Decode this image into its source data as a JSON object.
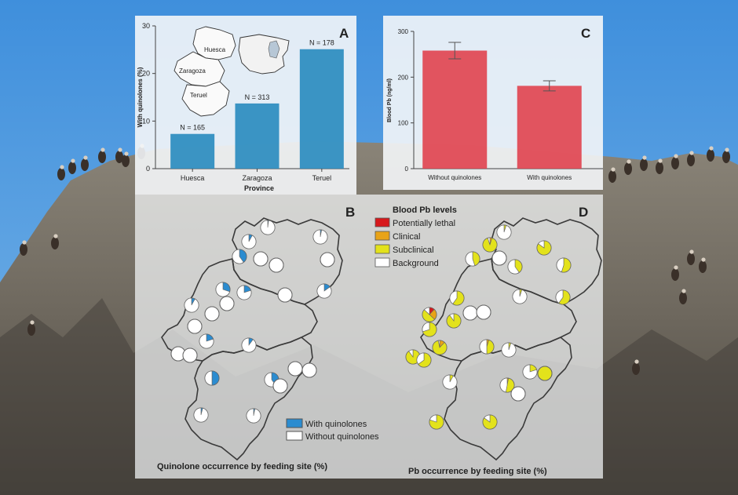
{
  "chart_data": [
    {
      "panel": "A",
      "type": "bar",
      "categories": [
        "Huesca",
        "Zaragoza",
        "Teruel"
      ],
      "values": [
        7.3,
        13.7,
        25.1
      ],
      "bar_labels": [
        "N = 165",
        "N = 313",
        "N = 178"
      ],
      "xlabel": "Province",
      "ylabel": "With quinolones (%)",
      "ylim": [
        0,
        30
      ],
      "yticks": [
        0,
        10,
        20,
        30
      ],
      "inset_labels": [
        "Huesca",
        "Zaragoza",
        "Teruel"
      ],
      "color": "#2b8cbf",
      "grid": false
    },
    {
      "panel": "C",
      "type": "bar",
      "categories": [
        "Without quinolones",
        "With quinolones"
      ],
      "values": [
        258,
        181
      ],
      "errors": [
        18,
        11
      ],
      "ylabel": "Blood Pb (ng/ml)",
      "ylim": [
        0,
        300
      ],
      "yticks": [
        0,
        100,
        200,
        300
      ],
      "color": "#e0434f",
      "grid": false
    },
    {
      "panel": "B",
      "type": "pie",
      "title": "Quinolone occurrence by feeding site (%)",
      "legend": [
        "With quinolones",
        "Without quinolones"
      ],
      "colors": [
        "#2b8cd0",
        "#ffffff"
      ]
    },
    {
      "panel": "D",
      "type": "pie",
      "title": "Pb occurrence by feeding site (%)",
      "legend_title": "Blood Pb levels",
      "legend": [
        "Potentially lethal",
        "Clinical",
        "Subclinical",
        "Background"
      ],
      "colors": [
        "#d7191c",
        "#e8a317",
        "#e3e21b",
        "#ffffff"
      ]
    }
  ],
  "panel_letters": [
    "A",
    "B",
    "C",
    "D"
  ]
}
